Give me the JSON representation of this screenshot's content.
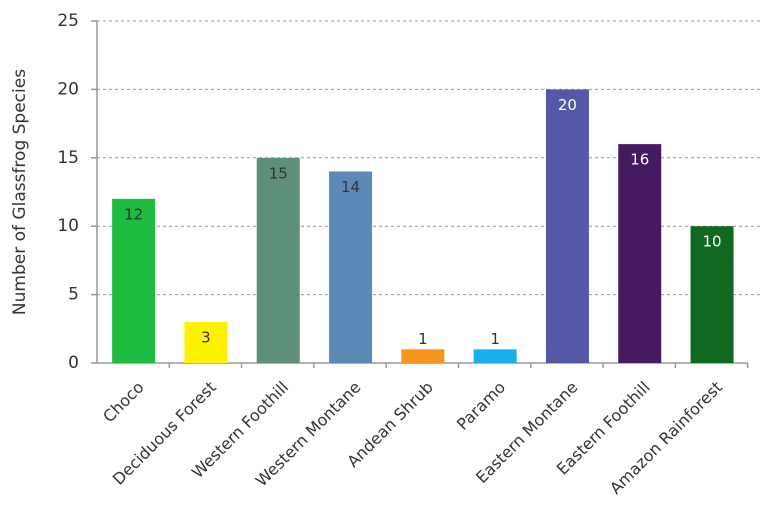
{
  "chart_data": {
    "type": "bar",
    "y_label": "Number of Glassfrog Species",
    "categories": [
      "Choco",
      "Deciduous Forest",
      "Western Foothill",
      "Western Montane",
      "Andean Shrub",
      "Paramo",
      "Eastern Montane",
      "Eastern Foothill",
      "Amazon Rainforest"
    ],
    "values": [
      12,
      3,
      15,
      14,
      1,
      1,
      20,
      16,
      10
    ],
    "colors": [
      "#1dbb3f",
      "#fff200",
      "#5e8f78",
      "#5b8ab7",
      "#f7941d",
      "#1ab0ee",
      "#5558a8",
      "#461a61",
      "#0f6a1f"
    ],
    "ylim": [
      0,
      25
    ],
    "yticks": [
      0,
      5,
      10,
      15,
      20,
      25
    ],
    "grid": true
  }
}
